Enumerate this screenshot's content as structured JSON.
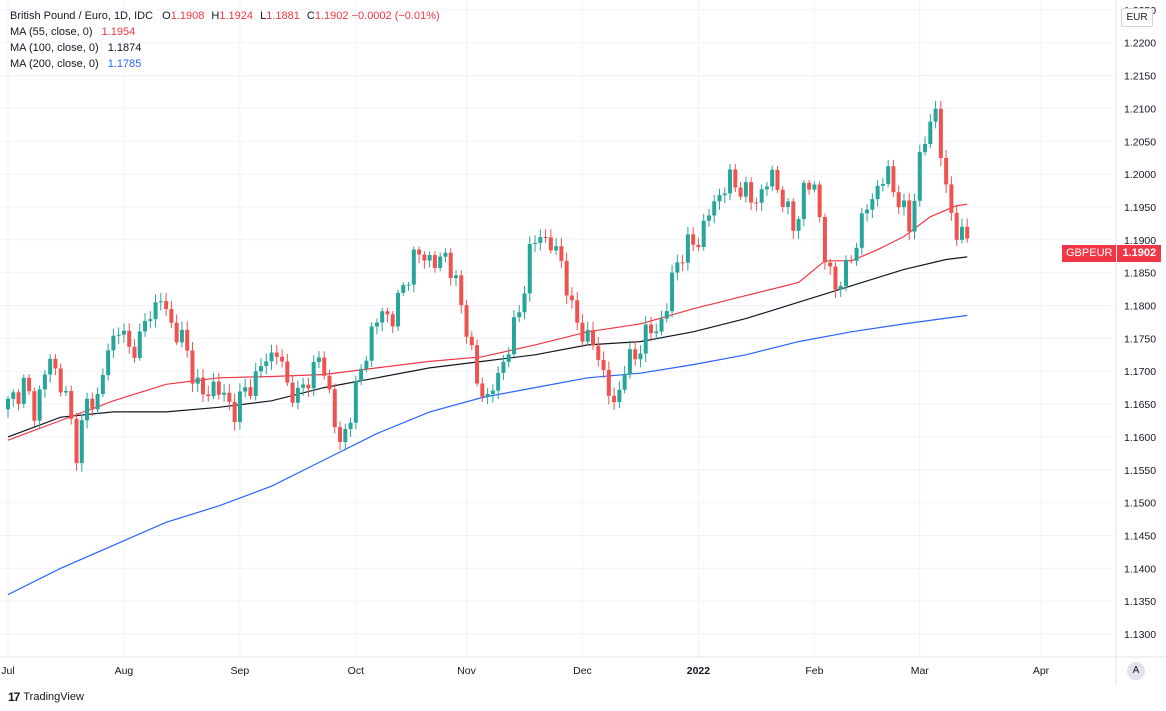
{
  "header": {
    "title": "British Pound / Euro, 1D, IDC",
    "ohlc": {
      "o_label": "O",
      "o": "1.1908",
      "h_label": "H",
      "h": "1.1924",
      "l_label": "L",
      "l": "1.1881",
      "c_label": "C",
      "c": "1.1902",
      "change": "−0.0002 (−0.01%)"
    },
    "indicators": [
      {
        "name": "MA (55, close, 0)",
        "value": "1.1954",
        "color": "#f23645"
      },
      {
        "name": "MA (100, close, 0)",
        "value": "1.1874",
        "color": "#131722"
      },
      {
        "name": "MA (200, close, 0)",
        "value": "1.1785",
        "color": "#2962ff"
      }
    ]
  },
  "currency_button": "EUR",
  "auto_button": "A",
  "brand": "TradingView",
  "price_tag": {
    "symbol": "GBPEUR",
    "price": "1.1902"
  },
  "colors": {
    "up": "#26a69a",
    "down": "#ef5350",
    "ma55": "#f23645",
    "ma100": "#131722",
    "ma200": "#2962ff",
    "grid": "#f0f3fa"
  },
  "chart_data": {
    "type": "candlestick",
    "ylim": [
      1.1265,
      1.2265
    ],
    "y_ticks": [
      "1.1300",
      "1.1350",
      "1.1400",
      "1.1450",
      "1.1500",
      "1.1550",
      "1.1600",
      "1.1650",
      "1.1700",
      "1.1750",
      "1.1800",
      "1.1850",
      "1.1900",
      "1.1950",
      "1.2000",
      "1.2050",
      "1.2100",
      "1.2150",
      "1.2200",
      "1.2250"
    ],
    "x_ticks": [
      {
        "label": "Jul",
        "day": 0
      },
      {
        "label": "Aug",
        "day": 22
      },
      {
        "label": "Sep",
        "day": 44
      },
      {
        "label": "Oct",
        "day": 66
      },
      {
        "label": "Nov",
        "day": 87
      },
      {
        "label": "Dec",
        "day": 109
      },
      {
        "label": "2022",
        "day": 131,
        "bold": true
      },
      {
        "label": "Feb",
        "day": 153
      },
      {
        "label": "Mar",
        "day": 173
      },
      {
        "label": "Apr",
        "day": 196
      }
    ],
    "x_range_days": [
      0,
      208
    ],
    "close_anchors": [
      [
        0,
        1.165
      ],
      [
        3,
        1.168
      ],
      [
        5,
        1.164
      ],
      [
        8,
        1.172
      ],
      [
        11,
        1.166
      ],
      [
        13,
        1.158
      ],
      [
        15,
        1.165
      ],
      [
        17,
        1.166
      ],
      [
        19,
        1.173
      ],
      [
        21,
        1.177
      ],
      [
        23,
        1.173
      ],
      [
        25,
        1.175
      ],
      [
        27,
        1.179
      ],
      [
        29,
        1.181
      ],
      [
        31,
        1.177
      ],
      [
        33,
        1.175
      ],
      [
        35,
        1.17
      ],
      [
        37,
        1.166
      ],
      [
        39,
        1.168
      ],
      [
        41,
        1.166
      ],
      [
        43,
        1.164
      ],
      [
        45,
        1.167
      ],
      [
        47,
        1.169
      ],
      [
        49,
        1.172
      ],
      [
        51,
        1.173
      ],
      [
        53,
        1.168
      ],
      [
        55,
        1.166
      ],
      [
        57,
        1.169
      ],
      [
        59,
        1.172
      ],
      [
        61,
        1.167
      ],
      [
        63,
        1.158
      ],
      [
        65,
        1.164
      ],
      [
        67,
        1.17
      ],
      [
        69,
        1.176
      ],
      [
        71,
        1.179
      ],
      [
        73,
        1.178
      ],
      [
        75,
        1.183
      ],
      [
        77,
        1.187
      ],
      [
        79,
        1.188
      ],
      [
        81,
        1.186
      ],
      [
        83,
        1.188
      ],
      [
        85,
        1.183
      ],
      [
        87,
        1.177
      ],
      [
        89,
        1.168
      ],
      [
        91,
        1.166
      ],
      [
        93,
        1.169
      ],
      [
        95,
        1.174
      ],
      [
        97,
        1.179
      ],
      [
        99,
        1.188
      ],
      [
        101,
        1.191
      ],
      [
        103,
        1.189
      ],
      [
        105,
        1.187
      ],
      [
        107,
        1.179
      ],
      [
        109,
        1.176
      ],
      [
        111,
        1.174
      ],
      [
        113,
        1.17
      ],
      [
        115,
        1.164
      ],
      [
        117,
        1.171
      ],
      [
        119,
        1.172
      ],
      [
        121,
        1.176
      ],
      [
        123,
        1.176
      ],
      [
        125,
        1.18
      ],
      [
        127,
        1.187
      ],
      [
        129,
        1.189
      ],
      [
        131,
        1.19
      ],
      [
        133,
        1.194
      ],
      [
        135,
        1.197
      ],
      [
        137,
        1.199
      ],
      [
        139,
        1.198
      ],
      [
        141,
        1.196
      ],
      [
        143,
        1.197
      ],
      [
        145,
        1.2
      ],
      [
        147,
        1.196
      ],
      [
        149,
        1.192
      ],
      [
        151,
        1.197
      ],
      [
        153,
        1.199
      ],
      [
        155,
        1.187
      ],
      [
        157,
        1.183
      ],
      [
        159,
        1.185
      ],
      [
        161,
        1.19
      ],
      [
        163,
        1.195
      ],
      [
        165,
        1.198
      ],
      [
        167,
        1.2
      ],
      [
        169,
        1.196
      ],
      [
        171,
        1.192
      ],
      [
        173,
        1.202
      ],
      [
        175,
        1.208
      ],
      [
        176,
        1.21
      ],
      [
        177,
        1.203
      ],
      [
        178,
        1.197
      ],
      [
        179,
        1.195
      ],
      [
        180,
        1.191
      ],
      [
        181,
        1.19
      ],
      [
        182,
        1.1902
      ]
    ],
    "ma55": [
      [
        0,
        1.1595
      ],
      [
        10,
        1.1625
      ],
      [
        20,
        1.1655
      ],
      [
        30,
        1.168
      ],
      [
        40,
        1.169
      ],
      [
        50,
        1.1692
      ],
      [
        60,
        1.1695
      ],
      [
        70,
        1.1705
      ],
      [
        80,
        1.1715
      ],
      [
        90,
        1.1722
      ],
      [
        100,
        1.174
      ],
      [
        110,
        1.176
      ],
      [
        120,
        1.1772
      ],
      [
        130,
        1.1795
      ],
      [
        140,
        1.1815
      ],
      [
        150,
        1.1835
      ],
      [
        155,
        1.1868
      ],
      [
        160,
        1.1868
      ],
      [
        165,
        1.1885
      ],
      [
        170,
        1.1905
      ],
      [
        175,
        1.1935
      ],
      [
        180,
        1.1952
      ],
      [
        182,
        1.1954
      ]
    ],
    "ma100": [
      [
        0,
        1.16
      ],
      [
        10,
        1.163
      ],
      [
        20,
        1.1638
      ],
      [
        30,
        1.1638
      ],
      [
        40,
        1.1645
      ],
      [
        50,
        1.1655
      ],
      [
        60,
        1.1675
      ],
      [
        70,
        1.169
      ],
      [
        80,
        1.1705
      ],
      [
        90,
        1.1715
      ],
      [
        100,
        1.1725
      ],
      [
        110,
        1.174
      ],
      [
        120,
        1.1745
      ],
      [
        130,
        1.176
      ],
      [
        140,
        1.178
      ],
      [
        150,
        1.1805
      ],
      [
        160,
        1.183
      ],
      [
        170,
        1.1855
      ],
      [
        178,
        1.187
      ],
      [
        182,
        1.1874
      ]
    ],
    "ma200": [
      [
        0,
        1.136
      ],
      [
        10,
        1.14
      ],
      [
        20,
        1.1435
      ],
      [
        30,
        1.147
      ],
      [
        40,
        1.1495
      ],
      [
        50,
        1.1525
      ],
      [
        60,
        1.1565
      ],
      [
        70,
        1.1605
      ],
      [
        80,
        1.1638
      ],
      [
        90,
        1.166
      ],
      [
        100,
        1.1675
      ],
      [
        110,
        1.169
      ],
      [
        120,
        1.1697
      ],
      [
        130,
        1.171
      ],
      [
        140,
        1.1725
      ],
      [
        150,
        1.1745
      ],
      [
        160,
        1.176
      ],
      [
        170,
        1.1772
      ],
      [
        182,
        1.1785
      ]
    ]
  }
}
